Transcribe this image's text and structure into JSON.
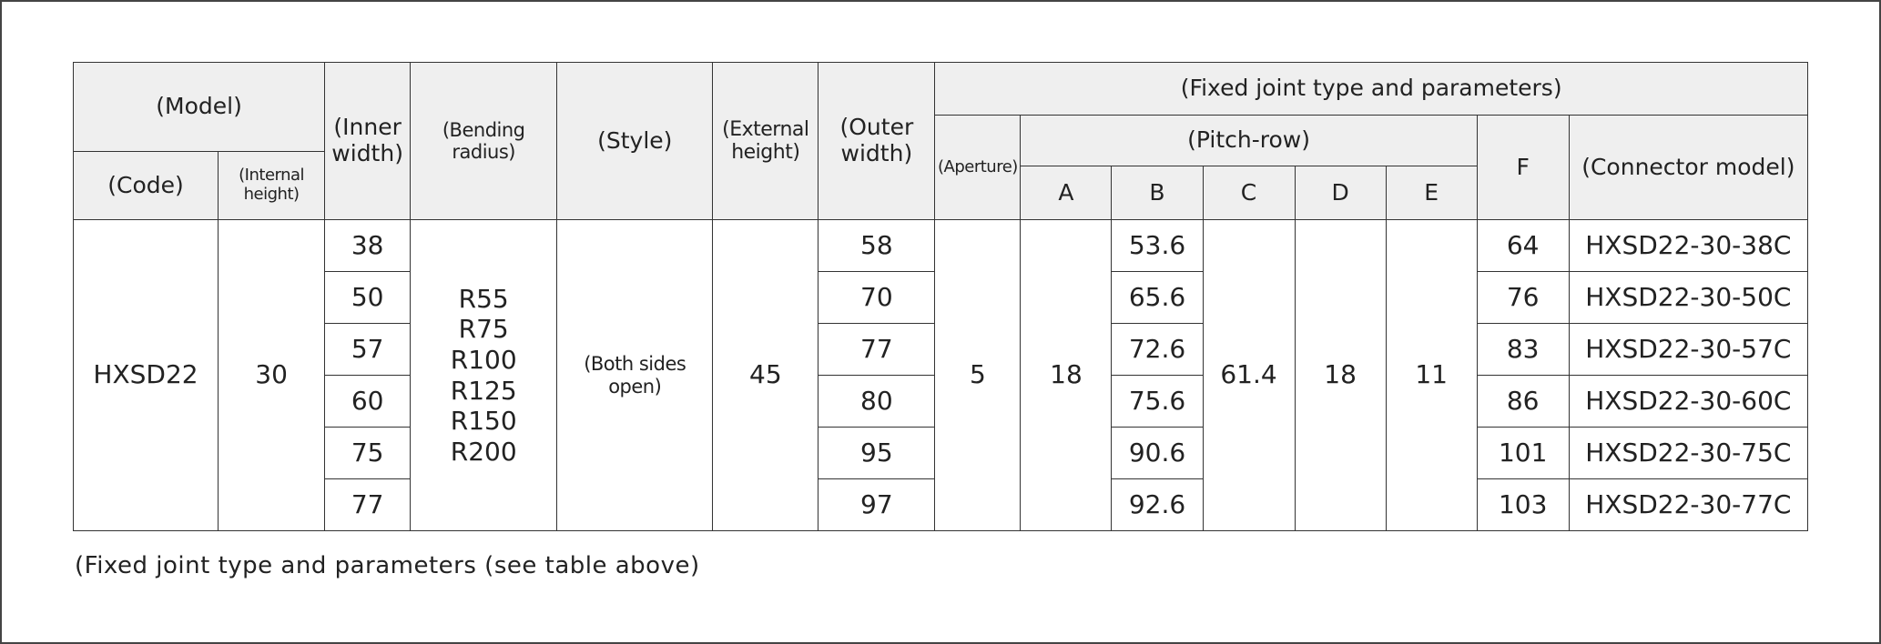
{
  "header": {
    "model": "(Model)",
    "code": "(Code)",
    "internal_height": "(Internal height)",
    "inner_width": "(Inner width)",
    "bending_radius": "(Bending radius)",
    "style": "(Style)",
    "external_height": "(External height)",
    "outer_width": "(Outer width)",
    "fixed_joint": "(Fixed joint type and parameters)",
    "aperture": "(Aperture)",
    "pitch_row": "(Pitch-row)",
    "a": "A",
    "b": "B",
    "c": "C",
    "d": "D",
    "e": "E",
    "f": "F",
    "connector_model": "(Connector model)"
  },
  "shared": {
    "code": "HXSD22",
    "internal_height": 30,
    "bending_radius": [
      "R55",
      "R75",
      "R100",
      "R125",
      "R150",
      "R200"
    ],
    "style": "(Both sides open)",
    "external_height": 45,
    "aperture": 5,
    "a": 18,
    "c": 61.4,
    "d": 18,
    "e": 11
  },
  "rows": [
    {
      "inner_width": 38,
      "outer_width": 58,
      "b": 53.6,
      "f": 64,
      "connector_model": "HXSD22-30-38C"
    },
    {
      "inner_width": 50,
      "outer_width": 70,
      "b": 65.6,
      "f": 76,
      "connector_model": "HXSD22-30-50C"
    },
    {
      "inner_width": 57,
      "outer_width": 77,
      "b": 72.6,
      "f": 83,
      "connector_model": "HXSD22-30-57C"
    },
    {
      "inner_width": 60,
      "outer_width": 80,
      "b": 75.6,
      "f": 86,
      "connector_model": "HXSD22-30-60C"
    },
    {
      "inner_width": 75,
      "outer_width": 95,
      "b": 90.6,
      "f": 101,
      "connector_model": "HXSD22-30-75C"
    },
    {
      "inner_width": 77,
      "outer_width": 97,
      "b": 92.6,
      "f": 103,
      "connector_model": "HXSD22-30-77C"
    }
  ],
  "note": "(Fixed joint type and parameters (see table above)"
}
